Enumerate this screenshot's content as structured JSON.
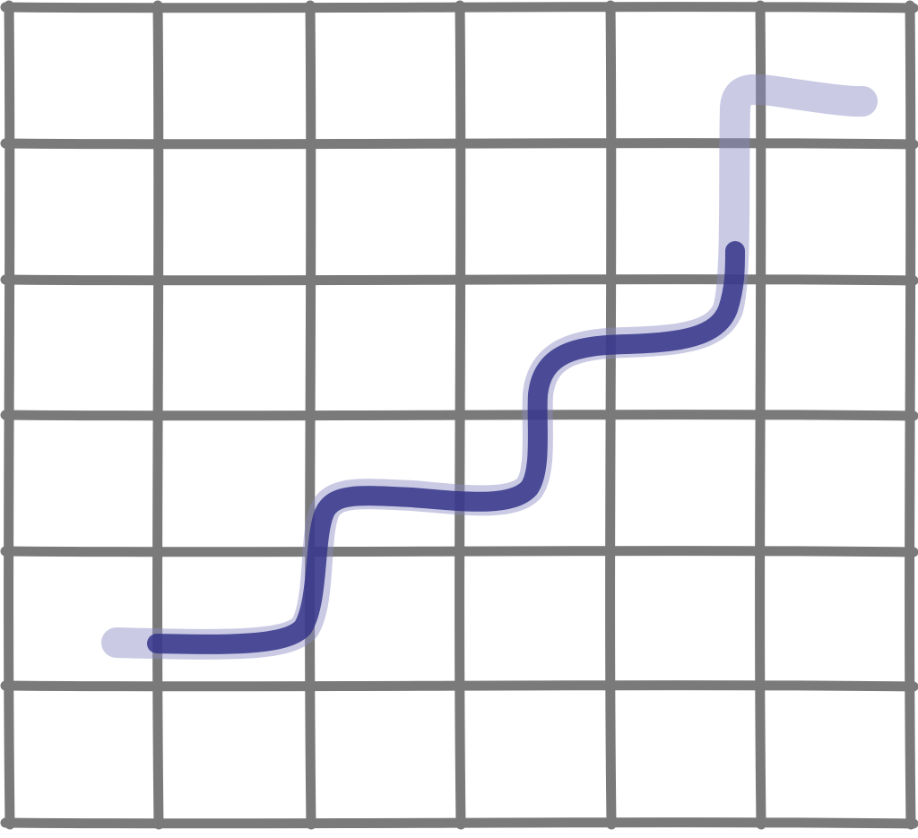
{
  "illustration": {
    "grid_columns": 6,
    "grid_rows": 6,
    "colors": {
      "grid": "#7a7a7a",
      "trend_line": "#34348a",
      "trend_line_light": "#8a8ac4",
      "background": "#ffffff"
    },
    "style": "hand-drawn sketch"
  }
}
